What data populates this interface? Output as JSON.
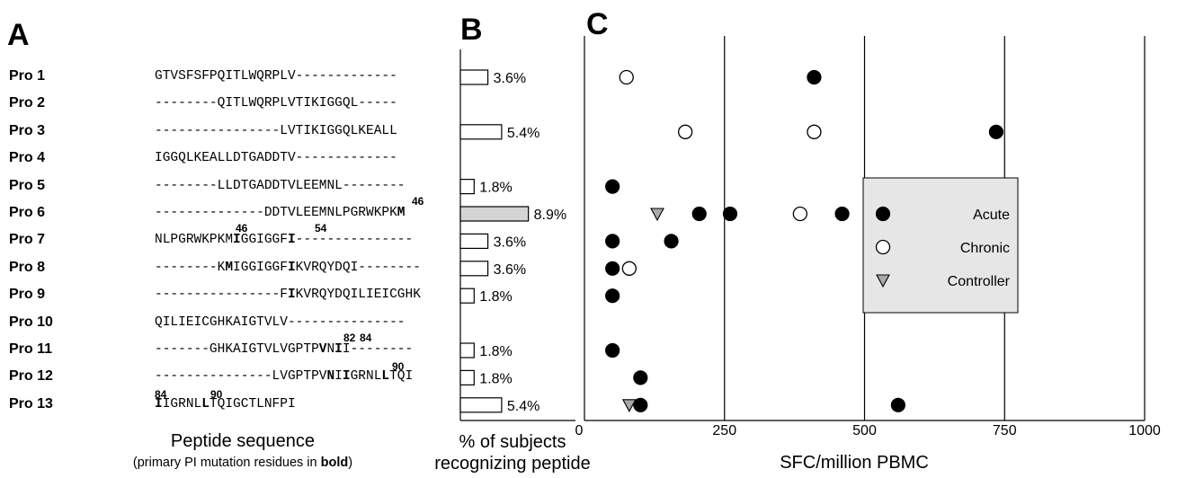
{
  "panels": {
    "a": "A",
    "b": "B",
    "c": "C"
  },
  "peptides": [
    {
      "name": "Pro 1",
      "seq": "GTVSFSFPQITLWQRPLV-------------"
    },
    {
      "name": "Pro 2",
      "seq": "--------QITLWQRPLVTIKIGGQL-----"
    },
    {
      "name": "Pro 3",
      "seq": "----------------LVTIKIGGQLKEALL"
    },
    {
      "name": "Pro 4",
      "seq": "IGGQLKEALLDTGADDTV-------------"
    },
    {
      "name": "Pro 5",
      "seq": "--------LLDTGADDTVLEEMNL--------"
    },
    {
      "name": "Pro 6",
      "seq": "--------------DDTVLEEMNLPGRWKPKM"
    },
    {
      "name": "Pro 7",
      "seq": "NLPGRWKPKMIGGIGGFI---------------"
    },
    {
      "name": "Pro 8",
      "seq": "--------KMIGGIGGFIKVRQYDQI--------"
    },
    {
      "name": "Pro 9",
      "seq": "----------------FIKVRQYDQILIEICGHK"
    },
    {
      "name": "Pro 10",
      "seq": "QILIEICGHKAIGTVLV---------------"
    },
    {
      "name": "Pro 11",
      "seq": "-------GHKAIGTVLVGPTPVNII--------"
    },
    {
      "name": "Pro 12",
      "seq": "---------------LVGPTPVNIIGRNLLTQI"
    },
    {
      "name": "Pro 13",
      "seq": "IIGRNLLTQIGCTLNFPI"
    }
  ],
  "residue_numbers": [
    "46",
    "46",
    "54",
    "82",
    "84",
    "90",
    "84",
    "90"
  ],
  "caption_a": {
    "line1": "Peptide sequence",
    "line2_pre": "(primary PI mutation residues in ",
    "line2_bold": "bold",
    "line2_post": ")"
  },
  "caption_b": {
    "line1": "% of subjects",
    "line2": "recognizing peptide"
  },
  "chart_data": [
    {
      "type": "bar",
      "orientation": "horizontal",
      "categories": [
        "Pro 1",
        "Pro 2",
        "Pro 3",
        "Pro 4",
        "Pro 5",
        "Pro 6",
        "Pro 7",
        "Pro 8",
        "Pro 9",
        "Pro 10",
        "Pro 11",
        "Pro 12",
        "Pro 13"
      ],
      "values": [
        3.6,
        null,
        5.4,
        null,
        1.8,
        8.9,
        3.6,
        3.6,
        1.8,
        null,
        1.8,
        1.8,
        5.4
      ],
      "labels": [
        "3.6%",
        "",
        "5.4%",
        "",
        "1.8%",
        "8.9%",
        "3.6%",
        "3.6%",
        "1.8%",
        "",
        "1.8%",
        "1.8%",
        "5.4%"
      ],
      "highlight": "Pro 6",
      "colors": {
        "bar": "#ffffff",
        "highlight": "#d4d4d4",
        "stroke": "#000000"
      }
    },
    {
      "type": "scatter",
      "xlabel": "SFC/million PBMC",
      "xlim": [
        0,
        1000
      ],
      "xticks": [
        "0",
        "250",
        "500",
        "750",
        "1000"
      ],
      "grid": "vertical",
      "categories": [
        "Pro 1",
        "Pro 2",
        "Pro 3",
        "Pro 4",
        "Pro 5",
        "Pro 6",
        "Pro 7",
        "Pro 8",
        "Pro 9",
        "Pro 10",
        "Pro 11",
        "Pro 12",
        "Pro 13"
      ],
      "legend_position": "right",
      "series": [
        {
          "name": "Acute",
          "marker": "filled-circle",
          "points": [
            {
              "row": "Pro 1",
              "x": 410
            },
            {
              "row": "Pro 3",
              "x": 735
            },
            {
              "row": "Pro 5",
              "x": 50
            },
            {
              "row": "Pro 6",
              "x": 205
            },
            {
              "row": "Pro 6",
              "x": 260
            },
            {
              "row": "Pro 6",
              "x": 460
            },
            {
              "row": "Pro 7",
              "x": 50
            },
            {
              "row": "Pro 7",
              "x": 155
            },
            {
              "row": "Pro 8",
              "x": 50
            },
            {
              "row": "Pro 9",
              "x": 50
            },
            {
              "row": "Pro 11",
              "x": 50
            },
            {
              "row": "Pro 12",
              "x": 100
            },
            {
              "row": "Pro 13",
              "x": 100
            },
            {
              "row": "Pro 13",
              "x": 560
            }
          ]
        },
        {
          "name": "Chronic",
          "marker": "open-circle",
          "points": [
            {
              "row": "Pro 1",
              "x": 75
            },
            {
              "row": "Pro 3",
              "x": 180
            },
            {
              "row": "Pro 3",
              "x": 410
            },
            {
              "row": "Pro 6",
              "x": 385
            },
            {
              "row": "Pro 8",
              "x": 80
            }
          ]
        },
        {
          "name": "Controller",
          "marker": "gray-triangle",
          "points": [
            {
              "row": "Pro 6",
              "x": 130
            },
            {
              "row": "Pro 13",
              "x": 80
            }
          ]
        }
      ],
      "colors": {
        "acute": "#000000",
        "chronic": "#ffffff",
        "controller": "#a8a8a8",
        "legend_bg": "#e6e6e6"
      }
    }
  ]
}
